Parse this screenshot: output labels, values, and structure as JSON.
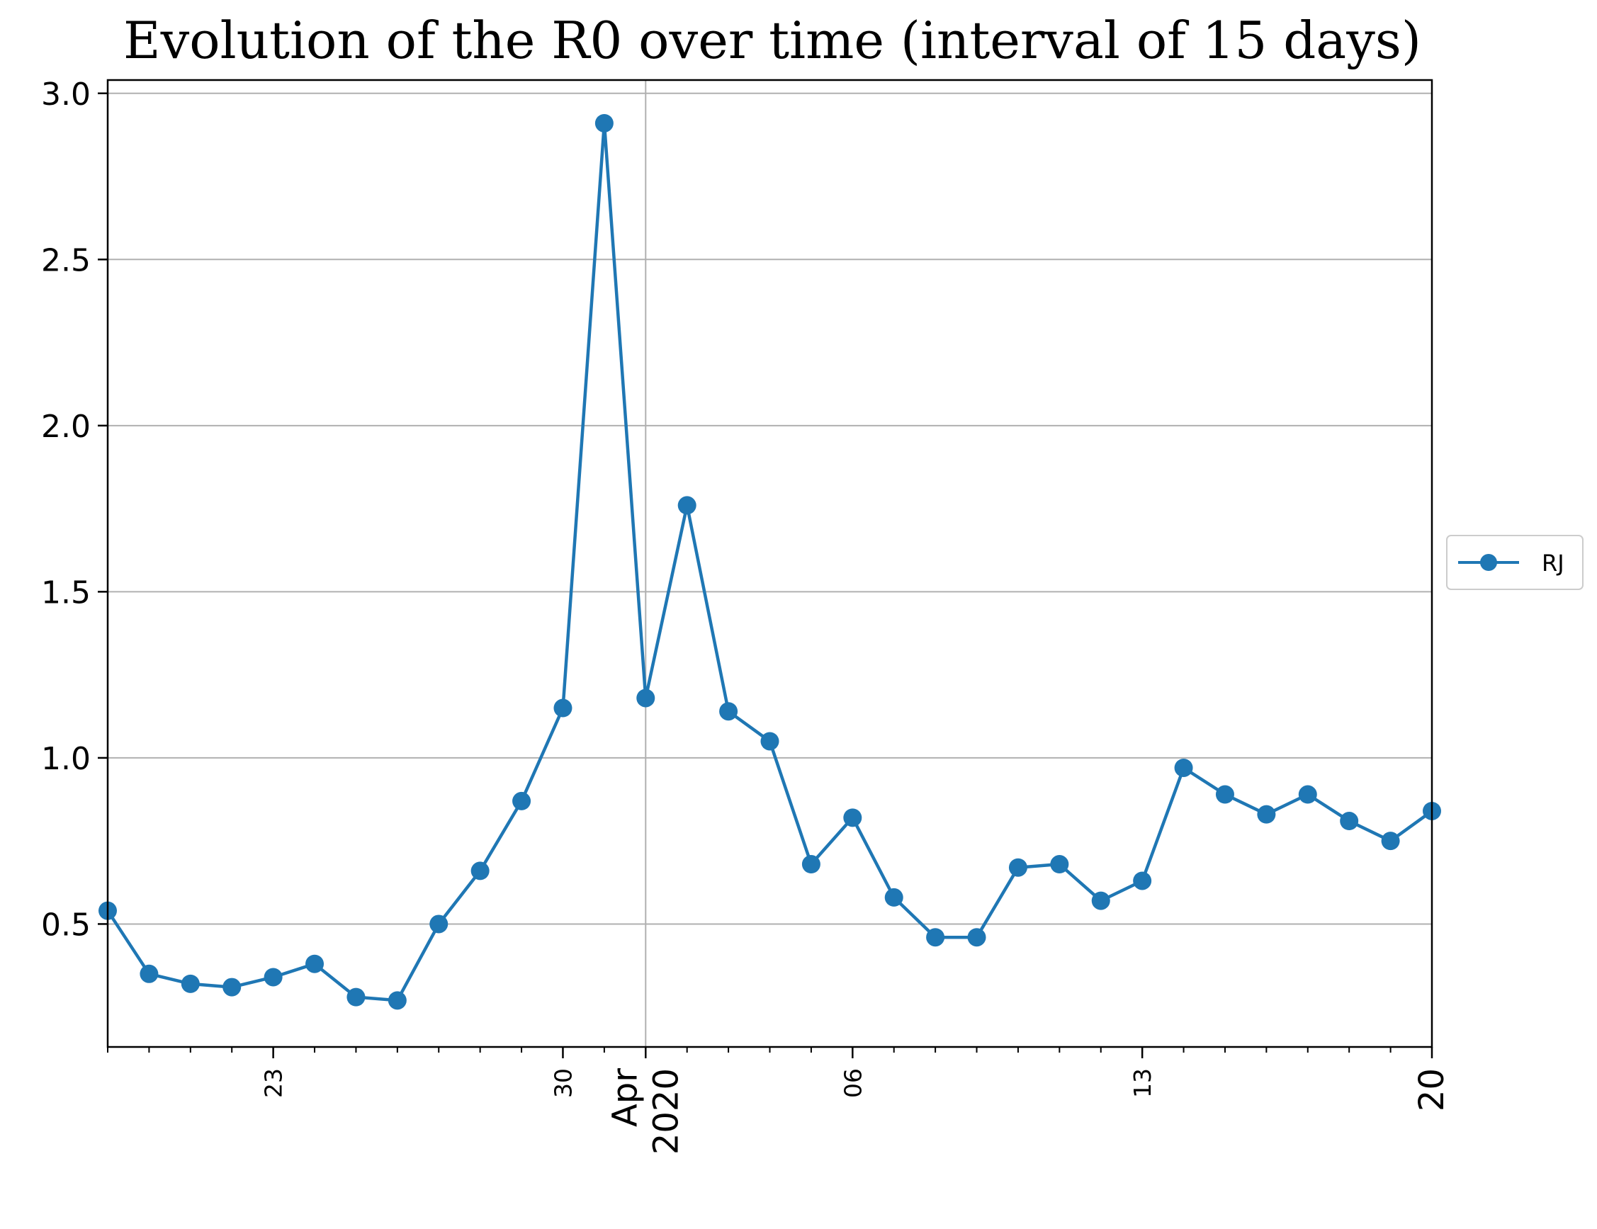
{
  "chart_data": {
    "type": "line",
    "title": "Evolution of the R0 over time (interval of 15 days)",
    "xlabel": "",
    "ylabel": "",
    "x": [
      "2020-03-19",
      "2020-03-20",
      "2020-03-21",
      "2020-03-22",
      "2020-03-23",
      "2020-03-24",
      "2020-03-25",
      "2020-03-26",
      "2020-03-27",
      "2020-03-28",
      "2020-03-29",
      "2020-03-30",
      "2020-03-31",
      "2020-04-01",
      "2020-04-02",
      "2020-04-03",
      "2020-04-04",
      "2020-04-05",
      "2020-04-06",
      "2020-04-07",
      "2020-04-08",
      "2020-04-09",
      "2020-04-10",
      "2020-04-11",
      "2020-04-12",
      "2020-04-13",
      "2020-04-14",
      "2020-04-15",
      "2020-04-16",
      "2020-04-17",
      "2020-04-18",
      "2020-04-19",
      "2020-04-20"
    ],
    "series": [
      {
        "name": "RJ",
        "color": "#1f77b4",
        "values": [
          0.54,
          0.35,
          0.32,
          0.31,
          0.34,
          0.38,
          0.28,
          0.27,
          0.5,
          0.66,
          0.87,
          1.15,
          2.91,
          1.18,
          1.76,
          1.14,
          1.05,
          0.68,
          0.82,
          0.58,
          0.46,
          0.46,
          0.67,
          0.68,
          0.57,
          0.63,
          0.97,
          0.89,
          0.83,
          0.89,
          0.81,
          0.75,
          0.84
        ]
      }
    ],
    "xlim": [
      "2020-03-19",
      "2020-04-20"
    ],
    "ylim": [
      0.13,
      3.04
    ],
    "yticks": [
      0.5,
      1.0,
      1.5,
      2.0,
      2.5,
      3.0
    ],
    "ytick_labels": [
      "0.5",
      "1.0",
      "1.5",
      "2.0",
      "2.5",
      "3.0"
    ],
    "xticks_major": [
      {
        "date": "2020-03-23",
        "label": "23"
      },
      {
        "date": "2020-03-30",
        "label": "30"
      },
      {
        "date": "2020-04-01",
        "label": "Apr\n2020"
      },
      {
        "date": "2020-04-06",
        "label": "06"
      },
      {
        "date": "2020-04-13",
        "label": "13"
      },
      {
        "date": "2020-04-20",
        "label": "20"
      }
    ],
    "grid": true,
    "legend": {
      "position": "right"
    }
  }
}
